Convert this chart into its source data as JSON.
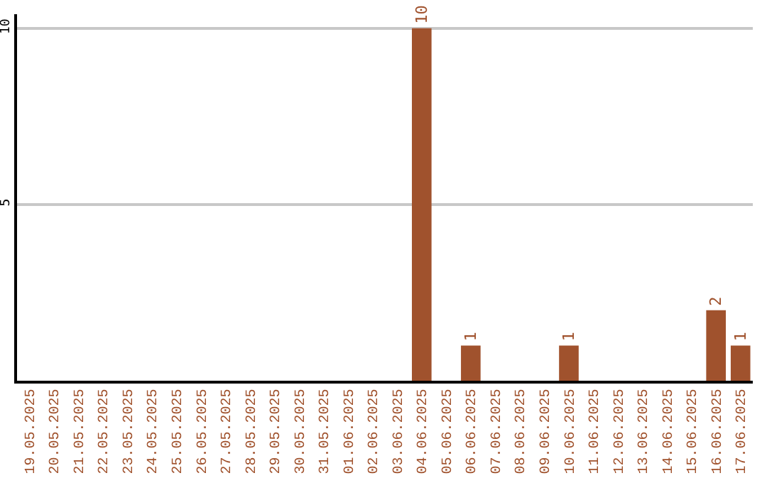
{
  "chart_data": {
    "type": "bar",
    "categories": [
      "19.05.2025",
      "20.05.2025",
      "21.05.2025",
      "22.05.2025",
      "23.05.2025",
      "24.05.2025",
      "25.05.2025",
      "26.05.2025",
      "27.05.2025",
      "28.05.2025",
      "29.05.2025",
      "30.05.2025",
      "31.05.2025",
      "01.06.2025",
      "02.06.2025",
      "03.06.2025",
      "04.06.2025",
      "05.06.2025",
      "06.06.2025",
      "07.06.2025",
      "08.06.2025",
      "09.06.2025",
      "10.06.2025",
      "11.06.2025",
      "12.06.2025",
      "13.06.2025",
      "14.06.2025",
      "15.06.2025",
      "16.06.2025",
      "17.06.2025"
    ],
    "values": [
      0,
      0,
      0,
      0,
      0,
      0,
      0,
      0,
      0,
      0,
      0,
      0,
      0,
      0,
      0,
      0,
      10,
      0,
      1,
      0,
      0,
      0,
      1,
      0,
      0,
      0,
      0,
      0,
      2,
      1
    ],
    "value_labels": [
      null,
      null,
      null,
      null,
      null,
      null,
      null,
      null,
      null,
      null,
      null,
      null,
      null,
      null,
      null,
      null,
      "10",
      null,
      "1",
      null,
      null,
      null,
      "1",
      null,
      null,
      null,
      null,
      null,
      "2",
      "1"
    ],
    "color": "#a0522d",
    "ylim": [
      0,
      10.4
    ],
    "yticks": [
      5,
      10
    ],
    "grid": "y"
  }
}
